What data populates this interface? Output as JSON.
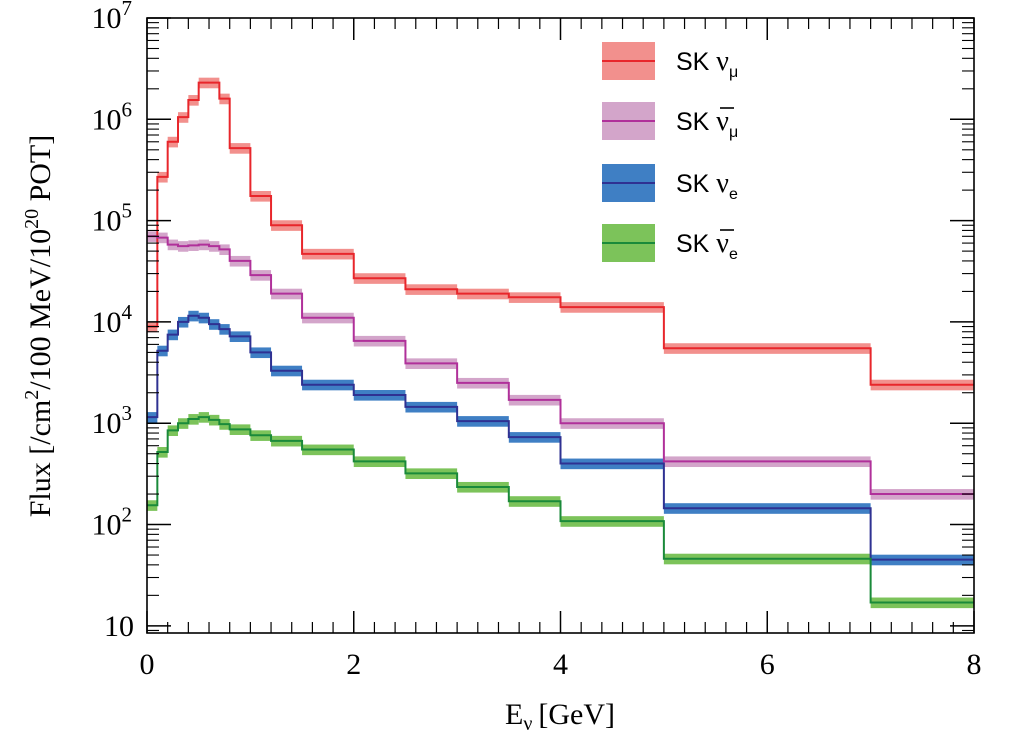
{
  "chart_data": {
    "type": "step",
    "x_label": "E",
    "x_label_sub": "ν",
    "x_label_unit": "[GeV]",
    "y_label_text": "Flux [/cm",
    "y_label_sup": "2",
    "y_label_text2": "/100 MeV/10",
    "y_label_sup2": "20",
    "y_label_text3": " POT]",
    "x_range": [
      0,
      8
    ],
    "y_range": [
      8.5,
      10000000
    ],
    "y_scale": "log",
    "x_ticks": [
      {
        "value": 0,
        "label": "0"
      },
      {
        "value": 2,
        "label": "2"
      },
      {
        "value": 4,
        "label": "4"
      },
      {
        "value": 6,
        "label": "6"
      },
      {
        "value": 8,
        "label": "8"
      }
    ],
    "y_ticks": [
      {
        "value": 10,
        "base": "10",
        "exp": ""
      },
      {
        "value": 100,
        "base": "10",
        "exp": "2"
      },
      {
        "value": 1000,
        "base": "10",
        "exp": "3"
      },
      {
        "value": 10000,
        "base": "10",
        "exp": "4"
      },
      {
        "value": 100000,
        "base": "10",
        "exp": "5"
      },
      {
        "value": 1000000,
        "base": "10",
        "exp": "6"
      },
      {
        "value": 10000000,
        "base": "10",
        "exp": "7"
      }
    ],
    "bin_edges": [
      0,
      0.1,
      0.2,
      0.3,
      0.4,
      0.5,
      0.6,
      0.7,
      0.8,
      1.0,
      1.2,
      1.5,
      2.0,
      2.5,
      3.0,
      3.5,
      4.0,
      5.0,
      7.0,
      8.0
    ],
    "band_fraction": 0.12,
    "legend_position": "top-right",
    "series": [
      {
        "name": "SK",
        "particle": "ν",
        "bar": false,
        "sub": "μ",
        "line_color": "#e8262b",
        "band_color": "#f2908d",
        "values": [
          9000,
          270000,
          600000,
          1050000,
          1550000,
          2300000,
          2300000,
          1600000,
          520000,
          175000,
          90000,
          47000,
          27000,
          21000,
          19000,
          17500,
          14000,
          5500,
          2400
        ]
      },
      {
        "name": "SK",
        "particle": "ν",
        "bar": true,
        "sub": "μ",
        "line_color": "#b0309a",
        "band_color": "#d3a5ca",
        "values": [
          70000,
          68000,
          58000,
          56000,
          57000,
          58000,
          56000,
          52000,
          40000,
          29000,
          19000,
          11000,
          6500,
          3900,
          2500,
          1700,
          1000,
          420,
          200
        ]
      },
      {
        "name": "SK",
        "particle": "ν",
        "bar": false,
        "sub": "e",
        "line_color": "#2f3192",
        "band_color": "#3f7fc4",
        "values": [
          1150,
          5200,
          7500,
          10000,
          11500,
          11000,
          9500,
          8500,
          7200,
          5000,
          3300,
          2400,
          1900,
          1450,
          1050,
          730,
          400,
          145,
          45
        ]
      },
      {
        "name": "SK",
        "particle": "ν",
        "bar": true,
        "sub": "e",
        "line_color": "#1a8a3a",
        "band_color": "#7cc35a",
        "values": [
          155,
          520,
          850,
          1000,
          1100,
          1150,
          1080,
          980,
          870,
          760,
          670,
          550,
          420,
          320,
          235,
          170,
          108,
          46,
          17
        ]
      }
    ]
  }
}
